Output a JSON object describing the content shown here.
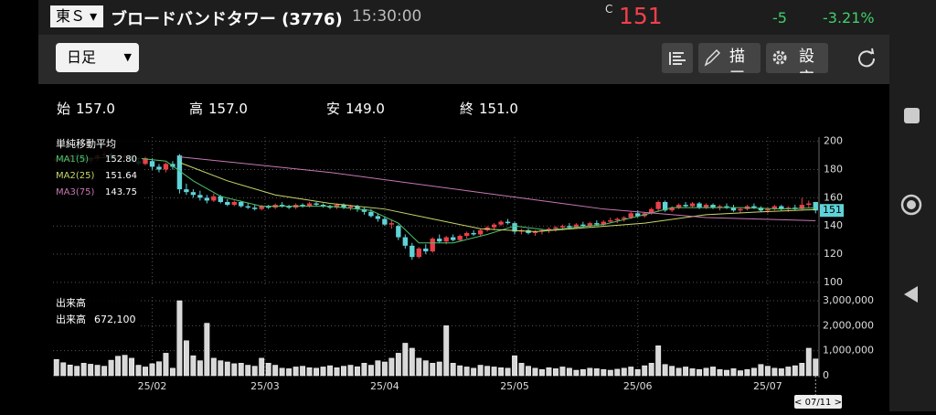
{
  "header": {
    "market": "東Ｓ",
    "name": "ブロードバンドタワー (3776)",
    "time": "15:30:00",
    "price_flag": "C",
    "price": "151",
    "change": "-5",
    "change_pct": "-3.21%"
  },
  "toolbar": {
    "period": "日足",
    "draw": "描画",
    "settings": "設定"
  },
  "ohlc_row": [
    {
      "label": "始",
      "value": "157.0"
    },
    {
      "label": "高",
      "value": "157.0"
    },
    {
      "label": "安",
      "value": "149.0"
    },
    {
      "label": "終",
      "value": "151.0"
    }
  ],
  "chart_data": {
    "type": "candlestick",
    "up_color": "#e8404a",
    "down_color": "#5fd3d8",
    "ma_title": "単純移動平均",
    "volume_title": "出来高",
    "volume_label": "出来高",
    "volume_current": "672,100",
    "cursor_label": "< 07/11 >",
    "price_marker": {
      "value": 151,
      "label": "151"
    },
    "xlim": [
      -0.5,
      111.5
    ],
    "xticks": [
      {
        "value": 14,
        "label": "25/02"
      },
      {
        "value": 30.5,
        "label": "25/03"
      },
      {
        "value": 48,
        "label": "25/04"
      },
      {
        "value": 67,
        "label": "25/05"
      },
      {
        "value": 85,
        "label": "25/06"
      },
      {
        "value": 104,
        "label": "25/07"
      }
    ],
    "ylim": [
      98,
      203
    ],
    "yticks": [
      200,
      180,
      160,
      140,
      120,
      100
    ],
    "y2lim": [
      0,
      3000000
    ],
    "y2ticks": [
      {
        "value": 3000000,
        "label": "3,000,000"
      },
      {
        "value": 2000000,
        "label": "2,000,000"
      },
      {
        "value": 1000000,
        "label": "1,000,000"
      },
      0
    ],
    "ohlc": [
      [
        186,
        189,
        184,
        188
      ],
      [
        188,
        190,
        185,
        186
      ],
      [
        186,
        191,
        185,
        190
      ],
      [
        190,
        192,
        188,
        189
      ],
      [
        189,
        190,
        185,
        186
      ],
      [
        186,
        189,
        184,
        188
      ],
      [
        188,
        191,
        186,
        190
      ],
      [
        190,
        193,
        188,
        191
      ],
      [
        191,
        192,
        187,
        188
      ],
      [
        188,
        190,
        186,
        189
      ],
      [
        189,
        191,
        187,
        190
      ],
      [
        190,
        191,
        185,
        186
      ],
      [
        186,
        188,
        183,
        184
      ],
      [
        184,
        189,
        183,
        188
      ],
      [
        186,
        188,
        180,
        182
      ],
      [
        182,
        184,
        178,
        180
      ],
      [
        180,
        185,
        178,
        184
      ],
      [
        184,
        186,
        180,
        182
      ],
      [
        190,
        191,
        163,
        166
      ],
      [
        166,
        170,
        162,
        164
      ],
      [
        164,
        166,
        160,
        162
      ],
      [
        162,
        165,
        158,
        160
      ],
      [
        160,
        162,
        156,
        158
      ],
      [
        158,
        163,
        157,
        161
      ],
      [
        161,
        162,
        156,
        157
      ],
      [
        157,
        159,
        154,
        155
      ],
      [
        155,
        158,
        154,
        157
      ],
      [
        157,
        158,
        153,
        154
      ],
      [
        154,
        156,
        152,
        153
      ],
      [
        153,
        155,
        151,
        152
      ],
      [
        152,
        155,
        151,
        154
      ],
      [
        154,
        155,
        152,
        153
      ],
      [
        153,
        156,
        152,
        155
      ],
      [
        155,
        157,
        153,
        154
      ],
      [
        154,
        155,
        152,
        153
      ],
      [
        153,
        156,
        152,
        155
      ],
      [
        155,
        156,
        153,
        154
      ],
      [
        154,
        157,
        153,
        156
      ],
      [
        156,
        157,
        154,
        155
      ],
      [
        155,
        156,
        153,
        154
      ],
      [
        154,
        155,
        152,
        153
      ],
      [
        153,
        156,
        152,
        155
      ],
      [
        155,
        156,
        152,
        153
      ],
      [
        153,
        155,
        151,
        154
      ],
      [
        154,
        155,
        150,
        152
      ],
      [
        152,
        153,
        148,
        150
      ],
      [
        150,
        152,
        146,
        147
      ],
      [
        147,
        149,
        143,
        145
      ],
      [
        145,
        147,
        140,
        141
      ],
      [
        141,
        144,
        138,
        142
      ],
      [
        140,
        141,
        130,
        132
      ],
      [
        132,
        134,
        124,
        126
      ],
      [
        126,
        128,
        116,
        118
      ],
      [
        118,
        125,
        117,
        124
      ],
      [
        124,
        127,
        120,
        122
      ],
      [
        122,
        132,
        121,
        131
      ],
      [
        131,
        134,
        128,
        129
      ],
      [
        129,
        133,
        127,
        132
      ],
      [
        132,
        134,
        129,
        130
      ],
      [
        130,
        134,
        129,
        133
      ],
      [
        133,
        136,
        131,
        135
      ],
      [
        135,
        137,
        133,
        134
      ],
      [
        134,
        138,
        133,
        137
      ],
      [
        137,
        140,
        136,
        139
      ],
      [
        139,
        142,
        137,
        141
      ],
      [
        141,
        144,
        140,
        143
      ],
      [
        143,
        145,
        141,
        142
      ],
      [
        142,
        143,
        134,
        136
      ],
      [
        136,
        138,
        134,
        137
      ],
      [
        137,
        138,
        134,
        135
      ],
      [
        135,
        137,
        133,
        136
      ],
      [
        136,
        138,
        134,
        137
      ],
      [
        137,
        139,
        135,
        138
      ],
      [
        138,
        140,
        136,
        139
      ],
      [
        139,
        141,
        137,
        140
      ],
      [
        140,
        142,
        138,
        139
      ],
      [
        139,
        142,
        138,
        141
      ],
      [
        141,
        143,
        139,
        140
      ],
      [
        140,
        143,
        139,
        142
      ],
      [
        142,
        144,
        140,
        141
      ],
      [
        141,
        144,
        140,
        143
      ],
      [
        143,
        146,
        142,
        144
      ],
      [
        144,
        146,
        142,
        145
      ],
      [
        145,
        147,
        143,
        146
      ],
      [
        146,
        150,
        145,
        149
      ],
      [
        149,
        151,
        146,
        147
      ],
      [
        147,
        150,
        146,
        149
      ],
      [
        149,
        153,
        148,
        152
      ],
      [
        152,
        158,
        150,
        157
      ],
      [
        157,
        158,
        150,
        151
      ],
      [
        151,
        154,
        150,
        153
      ],
      [
        153,
        156,
        152,
        155
      ],
      [
        155,
        157,
        153,
        154
      ],
      [
        154,
        157,
        153,
        156
      ],
      [
        156,
        157,
        152,
        153
      ],
      [
        153,
        156,
        152,
        155
      ],
      [
        155,
        156,
        152,
        153
      ],
      [
        153,
        155,
        151,
        154
      ],
      [
        154,
        156,
        152,
        153
      ],
      [
        153,
        155,
        150,
        151
      ],
      [
        151,
        153,
        149,
        152
      ],
      [
        152,
        155,
        151,
        154
      ],
      [
        154,
        156,
        152,
        153
      ],
      [
        153,
        154,
        150,
        151
      ],
      [
        151,
        153,
        149,
        152
      ],
      [
        152,
        155,
        151,
        154
      ],
      [
        154,
        155,
        151,
        152
      ],
      [
        152,
        154,
        150,
        153
      ],
      [
        153,
        155,
        151,
        152
      ],
      [
        152,
        160,
        151,
        155
      ],
      [
        155,
        158,
        153,
        156
      ],
      [
        157,
        157,
        149,
        151
      ]
    ],
    "volume": [
      650000,
      520000,
      430000,
      380000,
      500000,
      460000,
      420000,
      380000,
      620000,
      780000,
      820000,
      700000,
      420000,
      350000,
      480000,
      560000,
      900000,
      300000,
      3000000,
      1400000,
      800000,
      600000,
      2100000,
      700000,
      600000,
      550000,
      480000,
      500000,
      420000,
      380000,
      700000,
      500000,
      420000,
      300000,
      280000,
      350000,
      380000,
      320000,
      300000,
      350000,
      400000,
      320000,
      380000,
      420000,
      360000,
      500000,
      420000,
      600000,
      550000,
      700000,
      900000,
      1300000,
      1100000,
      700000,
      600000,
      500000,
      550000,
      2000000,
      500000,
      400000,
      350000,
      300000,
      420000,
      380000,
      350000,
      320000,
      300000,
      800000,
      500000,
      380000,
      300000,
      250000,
      320000,
      280000,
      350000,
      300000,
      220000,
      250000,
      300000,
      280000,
      250000,
      220000,
      260000,
      300000,
      350000,
      250000,
      400000,
      500000,
      1200000,
      450000,
      380000,
      300000,
      350000,
      280000,
      250000,
      300000,
      350000,
      250000,
      220000,
      280000,
      200000,
      250000,
      300000,
      450000,
      380000,
      300000,
      280000,
      350000,
      400000,
      500000,
      1100000,
      672100
    ],
    "series": [
      {
        "name": "MA1(5)",
        "current": "152.80",
        "color": "#4fc36a",
        "x": [
          0,
          10,
          16,
          20,
          24,
          30,
          40,
          46,
          50,
          53,
          58,
          63,
          67,
          72,
          80,
          86,
          90,
          100,
          106,
          111
        ],
        "values": [
          187,
          189,
          186,
          172,
          161,
          154,
          154,
          151,
          142,
          128,
          128,
          134,
          140,
          137,
          141,
          148,
          153,
          153,
          152,
          152.8
        ]
      },
      {
        "name": "MA2(25)",
        "current": "151.64",
        "color": "#c8d86a",
        "x": [
          18,
          25,
          32,
          40,
          48,
          55,
          62,
          70,
          78,
          86,
          95,
          103,
          111
        ],
        "values": [
          185,
          172,
          162,
          156,
          152,
          145,
          138,
          136,
          139,
          142,
          148,
          150,
          151.64
        ]
      },
      {
        "name": "MA3(75)",
        "current": "143.75",
        "color": "#c878b4",
        "x": [
          18,
          40,
          60,
          80,
          95,
          111
        ],
        "values": [
          189,
          178,
          165,
          152,
          146,
          143.75
        ]
      }
    ]
  }
}
